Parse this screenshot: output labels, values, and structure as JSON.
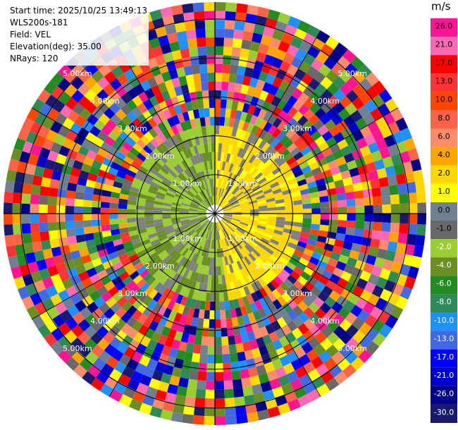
{
  "header": {
    "start_time": "Start time: 2025/10/25 13:49:13",
    "instrument": "WLS200s-181",
    "field": "Field: VEL",
    "elevation": "Elevation(deg): 35.00",
    "nrays": "NRays: 120"
  },
  "colorbar": {
    "unit": "m/s",
    "ticks": [
      "26.0",
      "21.0",
      "17.0",
      "13.0",
      "10.0",
      "8.0",
      "6.0",
      "4.0",
      "2.0",
      "1.0",
      "0.0",
      "-1.0",
      "-2.0",
      "-4.0",
      "-6.0",
      "-8.0",
      "-10.0",
      "-13.0",
      "-17.0",
      "-21.0",
      "-26.0",
      "-30.0"
    ],
    "colors": [
      "#ff1493",
      "#ff69b4",
      "#ff0000",
      "#ff3333",
      "#ff4500",
      "#ff6347",
      "#ff8c69",
      "#ffa500",
      "#ffd700",
      "#ffff00",
      "#708090",
      "#696969",
      "#9acd32",
      "#6b8e23",
      "#228b22",
      "#2e8b57",
      "#1e90ff",
      "#4169e1",
      "#0000ff",
      "#0000cd",
      "#00008b",
      "#191970"
    ]
  },
  "chart_data": {
    "type": "heatmap",
    "subtype": "radar-ppi",
    "field": "VEL",
    "nrays": 120,
    "range_ring_labels": [
      "1.00km",
      "2.00km",
      "3.00km",
      "4.00km",
      "5.00km"
    ],
    "zero_velocity_gray": "#808080",
    "approach_color": "#9acd32",
    "recede_color": "#ffd700"
  }
}
